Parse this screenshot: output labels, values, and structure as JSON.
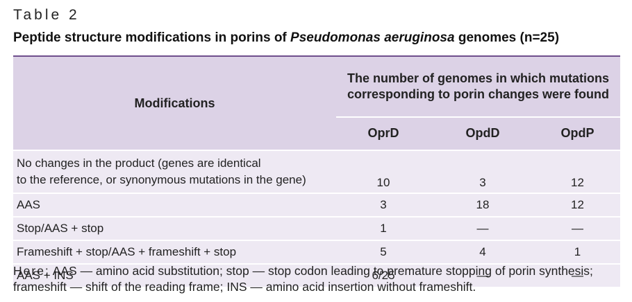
{
  "table_label": "Table 2",
  "title": {
    "prefix": "Peptide structure modifications in porins of ",
    "italic": "Pseudomonas aeruginosa",
    "suffix": " genomes (n=25)"
  },
  "table": {
    "header_modifications": "Modifications",
    "header_group_line1": "The number of genomes in which mutations",
    "header_group_line2": "corresponding to porin changes were found",
    "columns": [
      "OprD",
      "OpdD",
      "OpdP"
    ],
    "rows": [
      {
        "label_line1": "No changes in the product (genes are identical",
        "label_line2": "to the reference, or synonymous mutations in the gene)",
        "values": [
          "10",
          "3",
          "12"
        ]
      },
      {
        "label": "AAS",
        "values": [
          "3",
          "18",
          "12"
        ]
      },
      {
        "label": "Stop/AAS + stop",
        "values": [
          "1",
          "—",
          "—"
        ]
      },
      {
        "label": "Frameshift + stop/AAS + frameshift + stop",
        "values": [
          "5",
          "4",
          "1"
        ]
      },
      {
        "label": "AAS + INS",
        "values": [
          "6/25",
          "—",
          "—"
        ]
      }
    ]
  },
  "note": {
    "lead": "Here:",
    "text": " AAS — amino acid substitution; stop — stop codon leading to premature stopping of porin synthesis; frameshift — shift of the reading frame; INS — amino acid insertion without frameshift."
  },
  "colors": {
    "header_bg": "#dcd2e6",
    "body_bg": "#eee9f3",
    "accent_rule": "#6e4e8c"
  }
}
